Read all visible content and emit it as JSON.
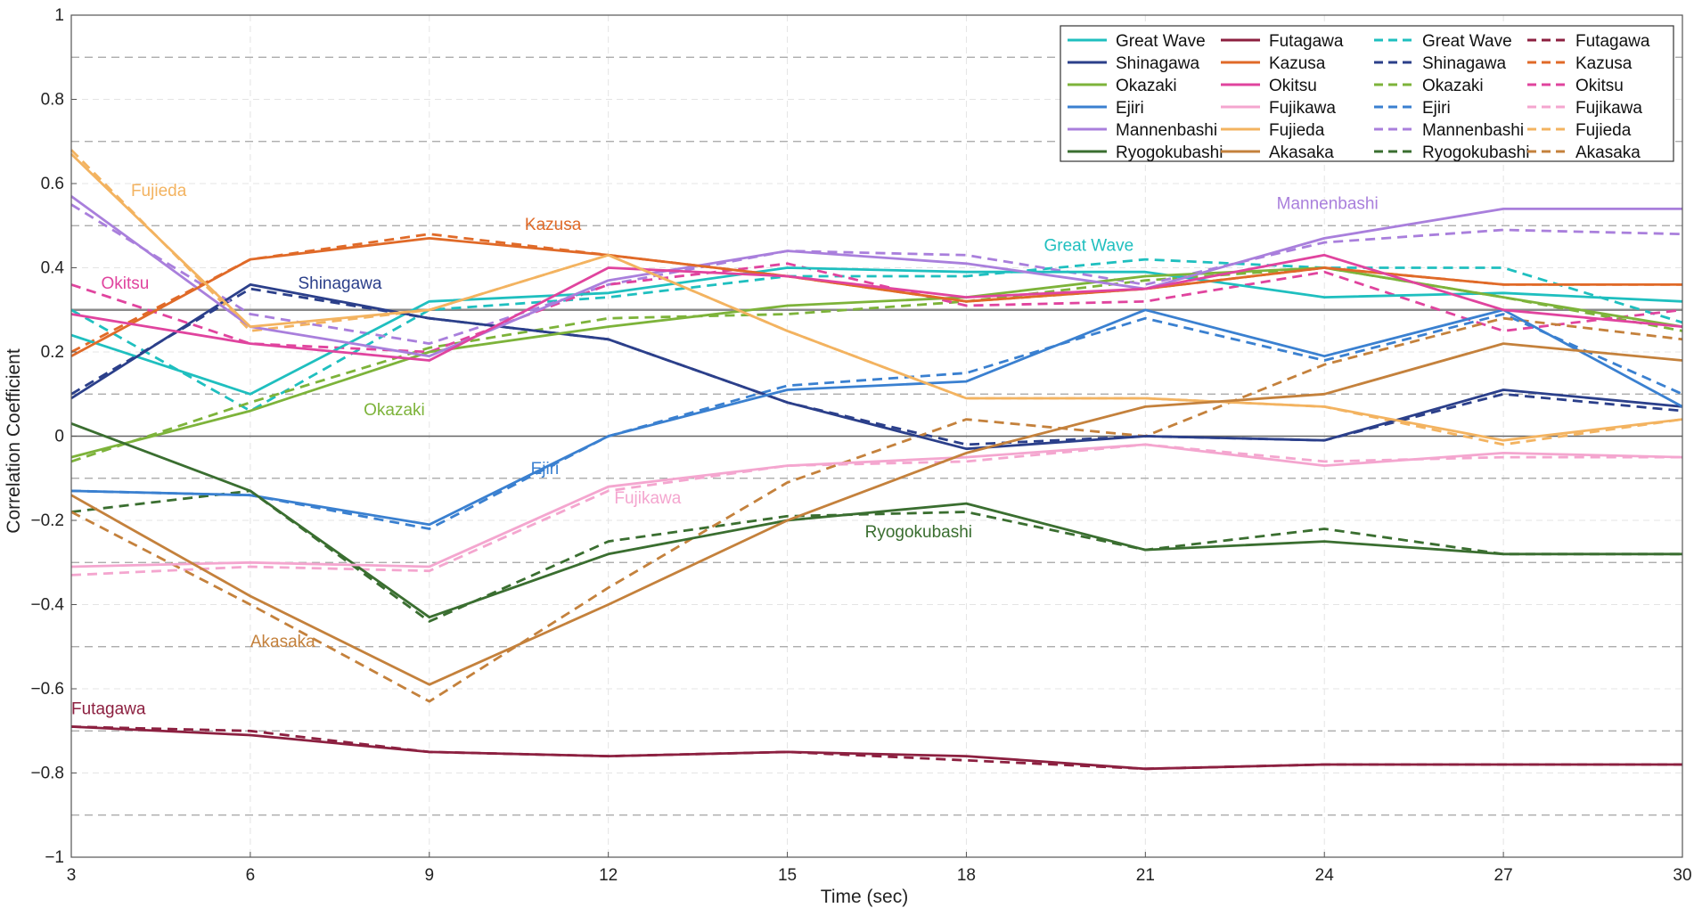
{
  "chart_data": {
    "type": "line",
    "title": "",
    "xlabel": "Time (sec)",
    "ylabel": "Correlation Coefficient",
    "xlim": [
      3,
      30
    ],
    "ylim": [
      -1,
      1
    ],
    "x": [
      3,
      6,
      9,
      12,
      15,
      18,
      21,
      24,
      27,
      30
    ],
    "x_tick_labels": [
      "3",
      "6",
      "9",
      "12",
      "15",
      "18",
      "21",
      "24",
      "27",
      "30"
    ],
    "y_ticks": [
      -1,
      -0.8,
      -0.6,
      -0.4,
      -0.2,
      0,
      0.2,
      0.4,
      0.6,
      0.8,
      1
    ],
    "y_tick_labels": [
      "−1",
      "−0.8",
      "−0.6",
      "−0.4",
      "−0.2",
      "0",
      "0.2",
      "0.4",
      "0.6",
      "0.8",
      "1"
    ],
    "y_minor_dashed": [
      -0.9,
      -0.7,
      -0.5,
      -0.3,
      -0.1,
      0.1,
      0.3,
      0.5,
      0.7,
      0.9
    ],
    "reference_lines": [
      0,
      0.3
    ],
    "grid": true,
    "legend_position": "top-right",
    "legend_columns": 4,
    "series": [
      {
        "name": "Great Wave",
        "style": "solid",
        "color": "#1fbfbf",
        "values": [
          0.24,
          0.1,
          0.32,
          0.34,
          0.4,
          0.39,
          0.39,
          0.33,
          0.34,
          0.32
        ]
      },
      {
        "name": "Shinagawa",
        "style": "solid",
        "color": "#2b3f8a",
        "values": [
          0.09,
          0.36,
          0.28,
          0.23,
          0.08,
          -0.03,
          0.0,
          -0.01,
          0.11,
          0.07
        ]
      },
      {
        "name": "Okazaki",
        "style": "solid",
        "color": "#7db33a",
        "values": [
          -0.05,
          0.06,
          0.2,
          0.26,
          0.31,
          0.33,
          0.38,
          0.4,
          0.33,
          0.26
        ]
      },
      {
        "name": "Ejiri",
        "style": "solid",
        "color": "#3a80d0",
        "values": [
          -0.13,
          -0.14,
          -0.21,
          0.0,
          0.11,
          0.13,
          0.3,
          0.19,
          0.3,
          0.07
        ]
      },
      {
        "name": "Mannenbashi",
        "style": "solid",
        "color": "#a97fdc",
        "values": [
          0.57,
          0.26,
          0.19,
          0.37,
          0.44,
          0.41,
          0.35,
          0.47,
          0.54,
          0.54
        ]
      },
      {
        "name": "Ryogokubashi",
        "style": "solid",
        "color": "#3a6e30",
        "values": [
          0.03,
          -0.13,
          -0.43,
          -0.28,
          -0.2,
          -0.16,
          -0.27,
          -0.25,
          -0.28,
          -0.28
        ]
      },
      {
        "name": "Futagawa",
        "style": "solid",
        "color": "#8c2040",
        "values": [
          -0.69,
          -0.71,
          -0.75,
          -0.76,
          -0.75,
          -0.76,
          -0.79,
          -0.78,
          -0.78,
          -0.78
        ]
      },
      {
        "name": "Kazusa",
        "style": "solid",
        "color": "#e06a28",
        "values": [
          0.19,
          0.42,
          0.47,
          0.43,
          0.38,
          0.32,
          0.35,
          0.4,
          0.36,
          0.36
        ]
      },
      {
        "name": "Okitsu",
        "style": "solid",
        "color": "#e0449e",
        "values": [
          0.29,
          0.22,
          0.18,
          0.4,
          0.38,
          0.33,
          0.35,
          0.43,
          0.3,
          0.26
        ]
      },
      {
        "name": "Fujikawa",
        "style": "solid",
        "color": "#f4a6cf",
        "values": [
          -0.31,
          -0.3,
          -0.31,
          -0.12,
          -0.07,
          -0.05,
          -0.02,
          -0.07,
          -0.04,
          -0.05
        ]
      },
      {
        "name": "Fujieda",
        "style": "solid",
        "color": "#f3b360",
        "values": [
          0.67,
          0.26,
          0.3,
          0.43,
          0.25,
          0.09,
          0.09,
          0.07,
          -0.01,
          0.04
        ]
      },
      {
        "name": "Akasaka",
        "style": "solid",
        "color": "#c4813c",
        "values": [
          -0.14,
          -0.38,
          -0.59,
          -0.4,
          -0.2,
          -0.04,
          0.07,
          0.1,
          0.22,
          0.18
        ]
      },
      {
        "name": "Great Wave",
        "style": "dashed",
        "color": "#1fbfbf",
        "values": [
          0.3,
          0.06,
          0.3,
          0.33,
          0.38,
          0.38,
          0.42,
          0.4,
          0.4,
          0.27
        ]
      },
      {
        "name": "Shinagawa",
        "style": "dashed",
        "color": "#2b3f8a",
        "values": [
          0.1,
          0.35,
          0.28,
          0.23,
          0.08,
          -0.02,
          0.0,
          -0.01,
          0.1,
          0.06
        ]
      },
      {
        "name": "Okazaki",
        "style": "dashed",
        "color": "#7db33a",
        "values": [
          -0.06,
          0.08,
          0.21,
          0.28,
          0.29,
          0.32,
          0.37,
          0.4,
          0.33,
          0.25
        ]
      },
      {
        "name": "Ejiri",
        "style": "dashed",
        "color": "#3a80d0",
        "values": [
          -0.13,
          -0.14,
          -0.22,
          0.0,
          0.12,
          0.15,
          0.28,
          0.18,
          0.29,
          0.1
        ]
      },
      {
        "name": "Mannenbashi",
        "style": "dashed",
        "color": "#a97fdc",
        "values": [
          0.55,
          0.29,
          0.22,
          0.36,
          0.44,
          0.43,
          0.36,
          0.46,
          0.49,
          0.48
        ]
      },
      {
        "name": "Ryogokubashi",
        "style": "dashed",
        "color": "#3a6e30",
        "values": [
          -0.18,
          -0.13,
          -0.44,
          -0.25,
          -0.19,
          -0.18,
          -0.27,
          -0.22,
          -0.28,
          -0.28
        ]
      },
      {
        "name": "Futagawa",
        "style": "dashed",
        "color": "#8c2040",
        "values": [
          -0.69,
          -0.7,
          -0.75,
          -0.76,
          -0.75,
          -0.77,
          -0.79,
          -0.78,
          -0.78,
          -0.78
        ]
      },
      {
        "name": "Kazusa",
        "style": "dashed",
        "color": "#e06a28",
        "values": [
          0.2,
          0.42,
          0.48,
          0.43,
          0.38,
          0.32,
          0.35,
          0.4,
          0.36,
          0.36
        ]
      },
      {
        "name": "Okitsu",
        "style": "dashed",
        "color": "#e0449e",
        "values": [
          0.36,
          0.22,
          0.2,
          0.36,
          0.41,
          0.31,
          0.32,
          0.39,
          0.25,
          0.3
        ]
      },
      {
        "name": "Fujikawa",
        "style": "dashed",
        "color": "#f4a6cf",
        "values": [
          -0.33,
          -0.31,
          -0.32,
          -0.13,
          -0.07,
          -0.06,
          -0.02,
          -0.06,
          -0.05,
          -0.05
        ]
      },
      {
        "name": "Fujieda",
        "style": "dashed",
        "color": "#f3b360",
        "values": [
          0.68,
          0.25,
          0.3,
          0.43,
          0.25,
          0.09,
          0.09,
          0.07,
          -0.02,
          0.04
        ]
      },
      {
        "name": "Akasaka",
        "style": "dashed",
        "color": "#c4813c",
        "values": [
          -0.18,
          -0.4,
          -0.63,
          -0.36,
          -0.11,
          0.04,
          0.0,
          0.17,
          0.28,
          0.23
        ]
      }
    ],
    "annotations": [
      {
        "text": "Fujieda",
        "color": "#f3b360",
        "x": 4.0,
        "y": 0.57
      },
      {
        "text": "Kazusa",
        "color": "#e06a28",
        "x": 10.6,
        "y": 0.49
      },
      {
        "text": "Okitsu",
        "color": "#e0449e",
        "x": 3.5,
        "y": 0.35
      },
      {
        "text": "Shinagawa",
        "color": "#2b3f8a",
        "x": 6.8,
        "y": 0.35
      },
      {
        "text": "Great Wave",
        "color": "#1fbfbf",
        "x": 19.3,
        "y": 0.44
      },
      {
        "text": "Mannenbashi",
        "color": "#a97fdc",
        "x": 23.2,
        "y": 0.54
      },
      {
        "text": "Okazaki",
        "color": "#7db33a",
        "x": 7.9,
        "y": 0.05
      },
      {
        "text": "Ejiri",
        "color": "#3a80d0",
        "x": 10.7,
        "y": -0.09
      },
      {
        "text": "Fujikawa",
        "color": "#f4a6cf",
        "x": 12.1,
        "y": -0.16
      },
      {
        "text": "Ryogokubashi",
        "color": "#3a6e30",
        "x": 16.3,
        "y": -0.24
      },
      {
        "text": "Akasaka",
        "color": "#c4813c",
        "x": 6.0,
        "y": -0.5
      },
      {
        "text": "Futagawa",
        "color": "#8c2040",
        "x": 3.0,
        "y": -0.66
      }
    ]
  }
}
